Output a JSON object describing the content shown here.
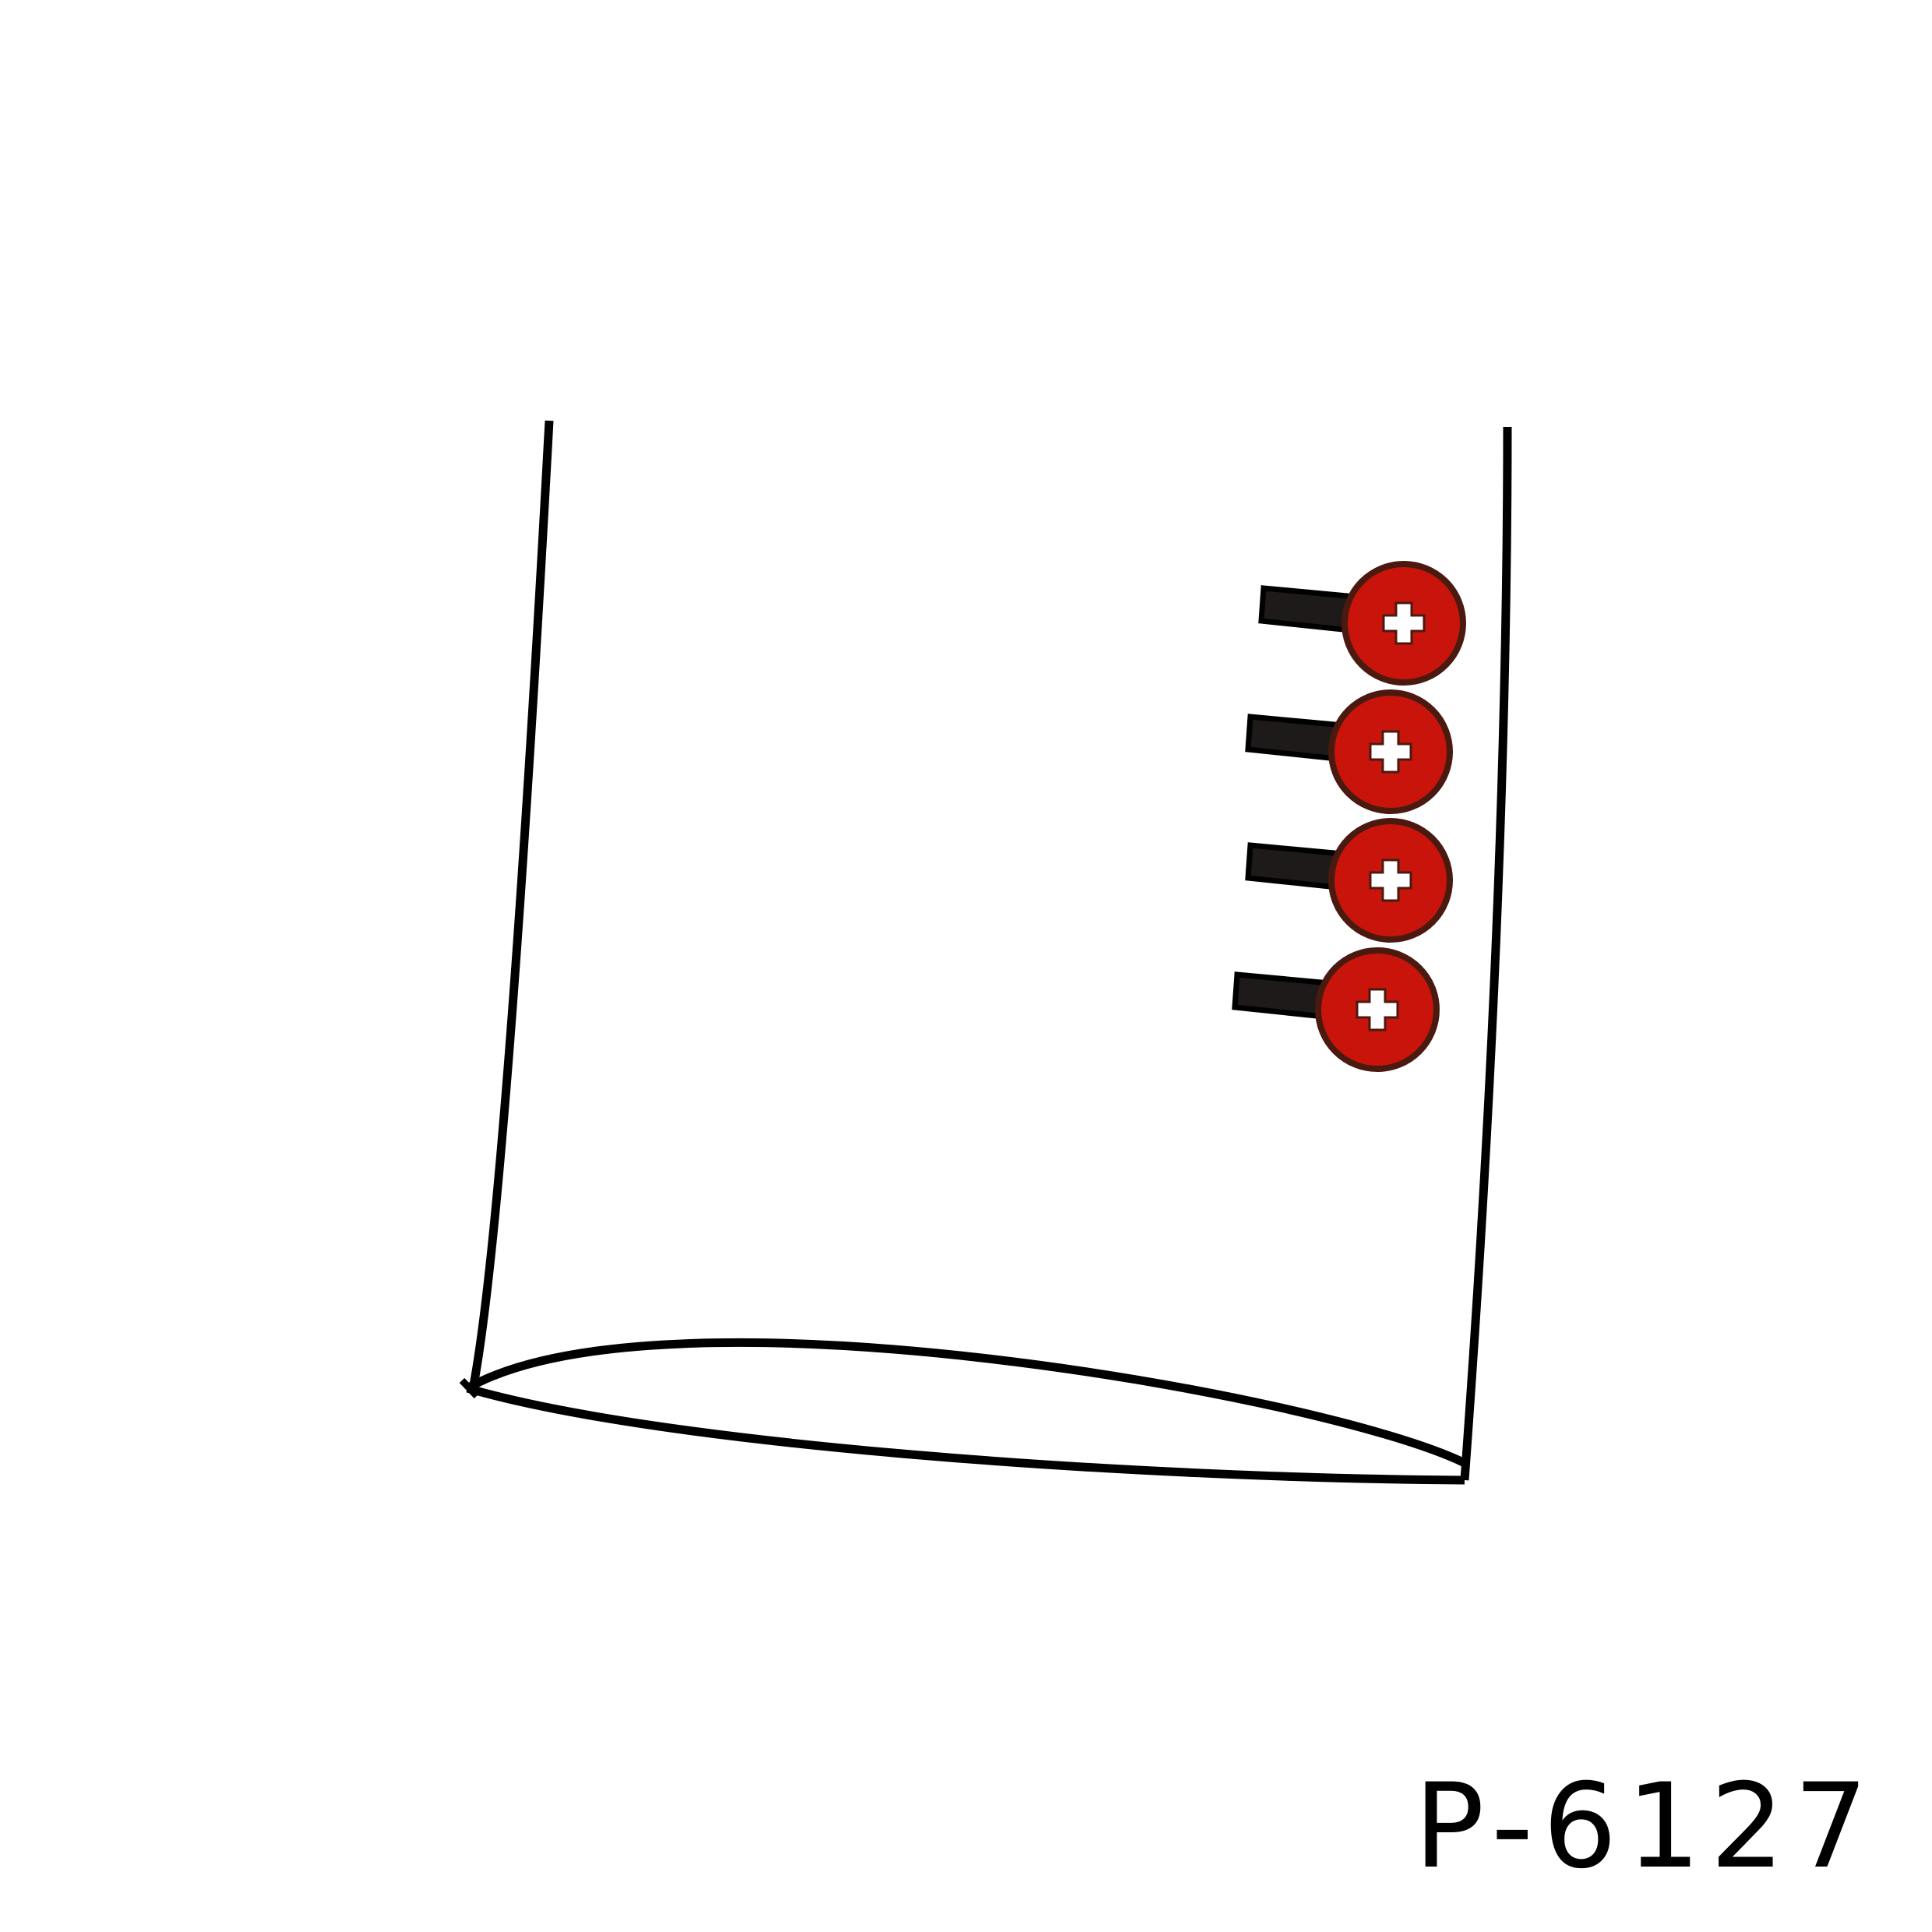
{
  "product_code": "P-6127",
  "colors": {
    "outline": "#000000",
    "button_fill": "#c8140a",
    "button_rim": "#4a1a10",
    "button_cross": "#ffffff",
    "tab_fill": "#1f1a1a"
  },
  "buttons": [
    {
      "icon": "cross-icon"
    },
    {
      "icon": "cross-icon"
    },
    {
      "icon": "cross-icon"
    },
    {
      "icon": "cross-icon"
    }
  ]
}
